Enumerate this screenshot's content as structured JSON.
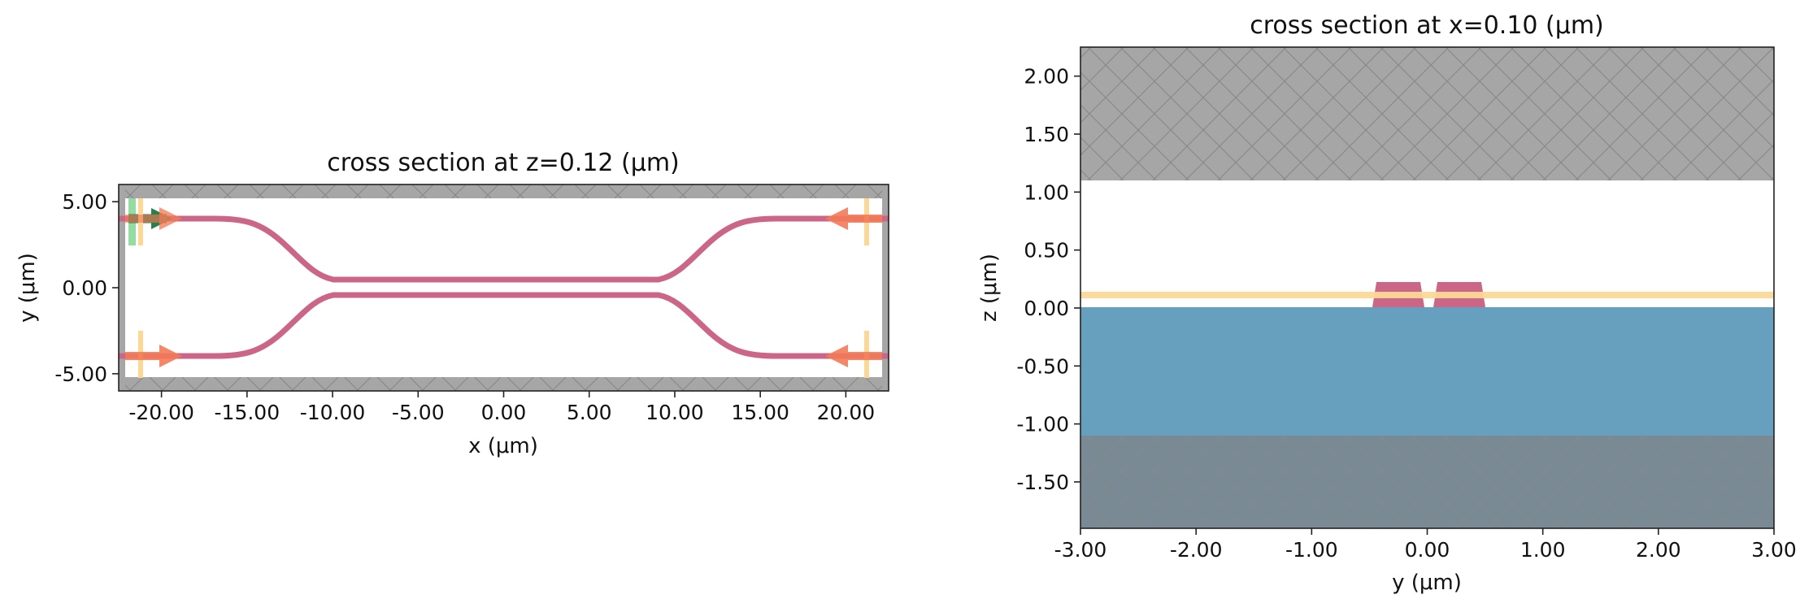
{
  "panels": [
    {
      "id": "left",
      "title": "cross section at z=0.12 (μm)",
      "xlabel": "x (μm)",
      "ylabel": "y (μm)",
      "xlim": [
        -22.5,
        22.5
      ],
      "ylim": [
        -6.0,
        6.0
      ],
      "xticks": [
        -20,
        -15,
        -10,
        -5,
        0,
        5,
        10,
        15,
        20
      ],
      "xtick_labels": [
        "-20.00",
        "-15.00",
        "-10.00",
        "-5.00",
        "0.00",
        "5.00",
        "10.00",
        "15.00",
        "20.00"
      ],
      "yticks": [
        5,
        0,
        -5
      ],
      "ytick_labels": [
        "5.00",
        "0.00",
        "-5.00"
      ],
      "pml_color": "#a6a6a6",
      "waveguide_color": "#cc6688"
    },
    {
      "id": "right",
      "title": "cross section at x=0.10 (μm)",
      "xlabel": "y (μm)",
      "ylabel": "z (μm)",
      "xlim": [
        -3.0,
        3.0
      ],
      "ylim": [
        -1.9,
        2.25
      ],
      "xticks": [
        -3,
        -2,
        -1,
        0,
        1,
        2,
        3
      ],
      "xtick_labels": [
        "-3.00",
        "-2.00",
        "-1.00",
        "0.00",
        "1.00",
        "2.00",
        "3.00"
      ],
      "yticks": [
        2.0,
        1.5,
        1.0,
        0.5,
        0.0,
        -0.5,
        -1.0,
        -1.5
      ],
      "ytick_labels": [
        "2.00",
        "1.50",
        "1.00",
        "0.50",
        "0.00",
        "-0.50",
        "-1.00",
        "-1.50"
      ],
      "substrate_color": "#679fbe",
      "pml_color": "#a6a6a6",
      "monitor_color": "#fcd896",
      "waveguide_color": "#cc6688"
    }
  ]
}
